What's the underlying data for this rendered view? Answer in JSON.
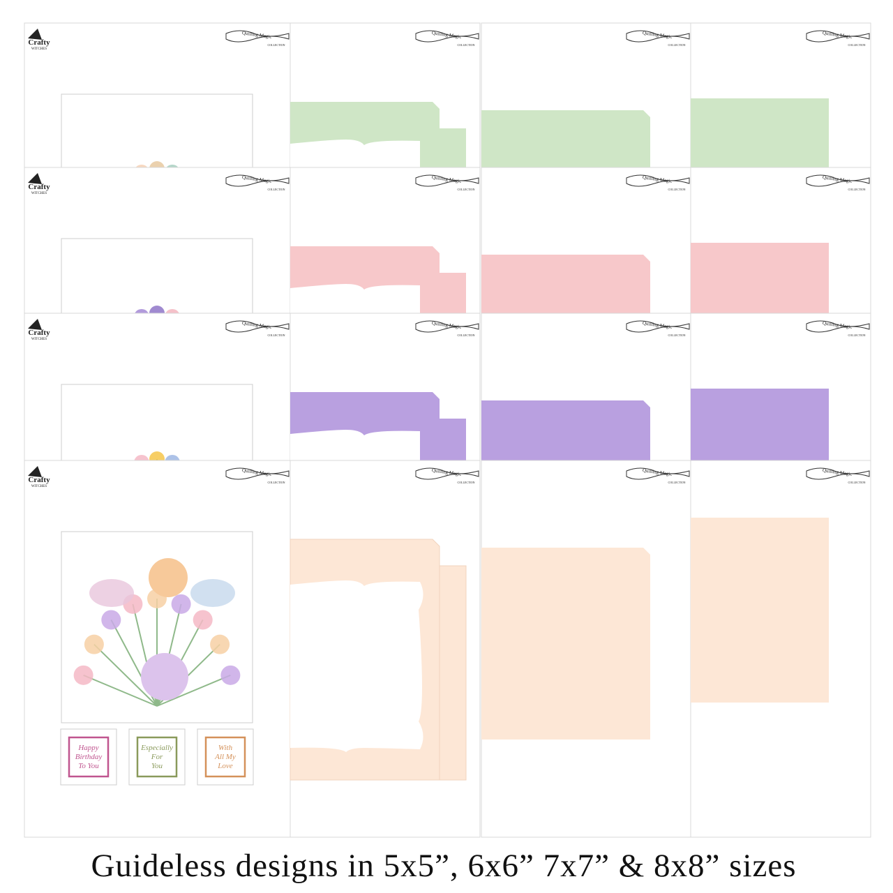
{
  "brand": {
    "crafty": "Crafty",
    "witches": "WITCHES",
    "quilling": "Quilling Magic",
    "collection": "COLLECTION"
  },
  "sentiments": [
    {
      "lines": [
        "Happy",
        "Birthday",
        "To You"
      ],
      "color": "#c0558f"
    },
    {
      "lines": [
        "Especially",
        "For",
        "You"
      ],
      "color": "#8a9a5b"
    },
    {
      "lines": [
        "With",
        "All My",
        "Love"
      ],
      "color": "#d4915a"
    }
  ],
  "rows": [
    {
      "color": "#cfe6c6"
    },
    {
      "color": "#f7c8ca"
    },
    {
      "color": "#b9a0e0"
    },
    {
      "color": "#fde7d6"
    }
  ],
  "caption": "Guideless designs in 5x5”, 6x6” 7x7” & 8x8” sizes"
}
